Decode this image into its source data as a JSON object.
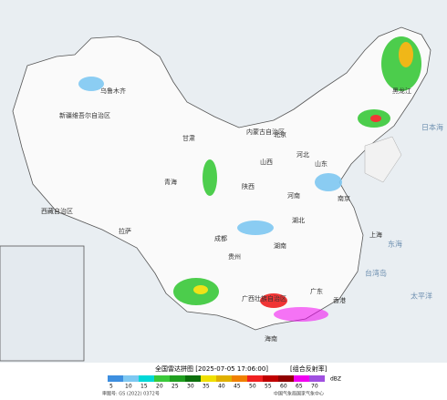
{
  "map": {
    "title": "全国雷达拼图 [2025-07-05 17:06:00]",
    "product": "[组合反射率]",
    "labels": [
      "新疆维吾尔自治区",
      "西藏自治区",
      "青海",
      "乌鲁木齐",
      "拉萨",
      "成都",
      "甘肃",
      "陕西",
      "山西",
      "河北",
      "北京",
      "山东",
      "河南",
      "湖北",
      "湖南",
      "贵州",
      "广西壮族自治区",
      "广东",
      "南京",
      "上海",
      "香港",
      "海南",
      "内蒙古自治区",
      "黑龙江"
    ],
    "seas": [
      "日本海",
      "东海",
      "太平洋",
      "台湾岛"
    ],
    "legend": {
      "values": [
        5,
        10,
        15,
        20,
        25,
        30,
        35,
        40,
        45,
        50,
        55,
        60,
        65,
        70
      ],
      "unit": "dBZ",
      "colors": [
        "#3d8fe0",
        "#7ec8f2",
        "#00d8d8",
        "#3ac93a",
        "#1f9f1f",
        "#0c6f0c",
        "#f0e000",
        "#e0b000",
        "#f08000",
        "#f02020",
        "#c00000",
        "#900000",
        "#f000f0",
        "#a050e0"
      ]
    },
    "footer": "审图号: GS (2022) 0372号",
    "source": "中国气象局国家气象中心"
  }
}
